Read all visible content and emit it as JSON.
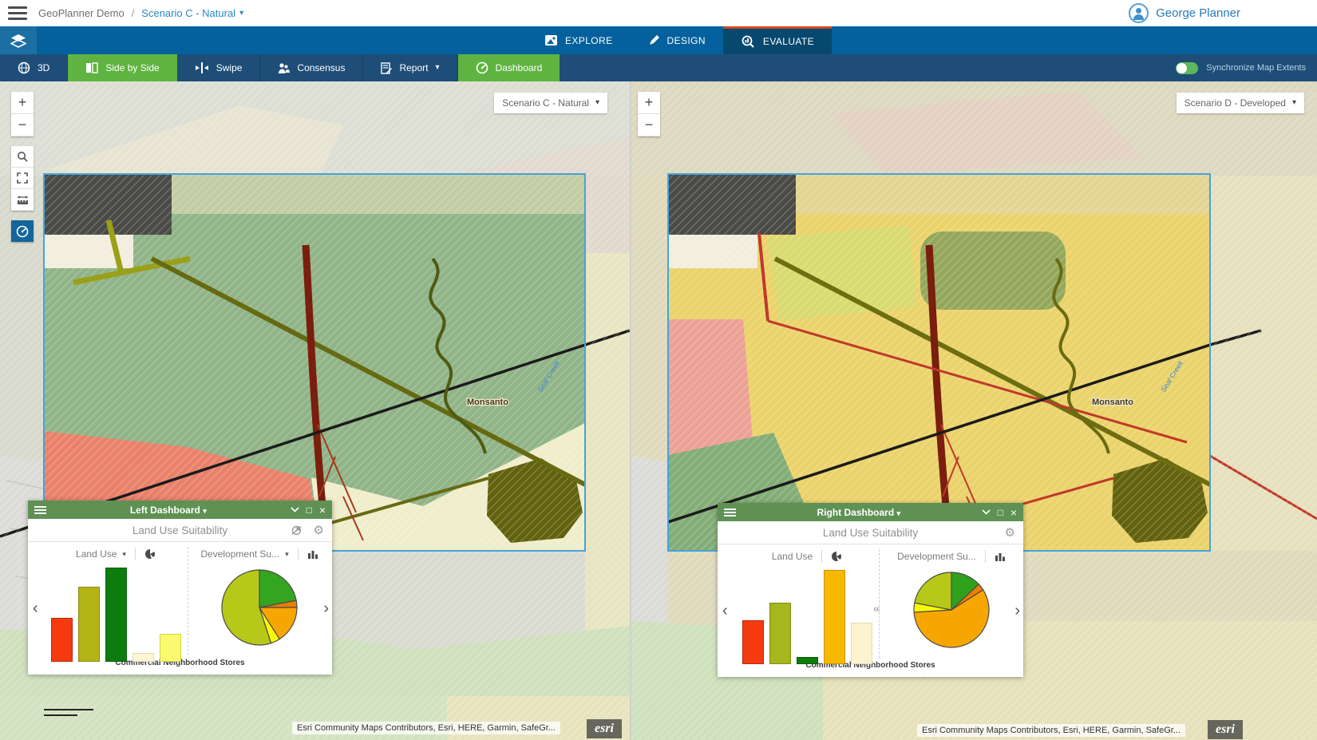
{
  "topbar": {
    "app_title": "GeoPlanner Demo",
    "separator": "/",
    "scenario_label": "Scenario C - Natural",
    "user_name": "George Planner"
  },
  "mode_bar": {
    "tabs": [
      {
        "label": "EXPLORE"
      },
      {
        "label": "DESIGN"
      },
      {
        "label": "EVALUATE"
      }
    ],
    "active_tab": "EVALUATE"
  },
  "toolbar": {
    "buttons": [
      {
        "label": "3D"
      },
      {
        "label": "Side by Side",
        "active": true
      },
      {
        "label": "Swipe"
      },
      {
        "label": "Consensus"
      },
      {
        "label": "Report",
        "has_caret": true
      },
      {
        "label": "Dashboard",
        "active": true
      }
    ],
    "sync_label": "Synchronize Map Extents",
    "sync_on": true
  },
  "left_map": {
    "scenario_selector": "Scenario C - Natural",
    "place_label": "Monsanto",
    "creek_label": "Seal Creek",
    "attribution": "Esri Community Maps Contributors, Esri, HERE, Garmin, SafeGr...",
    "esri_logo": "esri"
  },
  "right_map": {
    "scenario_selector": "Scenario D - Developed",
    "place_label": "Monsanto",
    "creek_label": "Seal Creek",
    "attribution": "Esri Community Maps Contributors, Esri, HERE, Garmin, SafeGr...",
    "esri_logo": "esri"
  },
  "left_dashboard": {
    "title": "Left Dashboard",
    "subtitle": "Land Use Suitability",
    "widgets": [
      {
        "selector_label": "Land Use"
      },
      {
        "selector_label": "Development Su..."
      }
    ],
    "footer_label": "Commercial Neighborhood Stores"
  },
  "right_dashboard": {
    "title": "Right Dashboard",
    "subtitle": "Land Use Suitability",
    "widgets": [
      {
        "selector_label": "Land Use"
      },
      {
        "selector_label": "Development Su..."
      }
    ],
    "footer_label": "Commercial Neighborhood Stores"
  },
  "icons": {
    "caret_down": "▾",
    "chevron_left": "‹",
    "chevron_right": "›",
    "collapse_left": "«",
    "close": "×",
    "maximize": "□",
    "gear": "⚙"
  },
  "colors": {
    "accent_green": "#5fb441",
    "nav_blue": "#04619d",
    "toolbar_navy": "#1e4e78",
    "active_tab_border": "#d0491d",
    "dashboard_header_green": "#5f9155",
    "link_blue": "#2a86c7",
    "extent_border_blue": "#44a4da"
  },
  "chart_data": [
    {
      "id": "left-landuse-bar",
      "type": "bar",
      "title": "Land Use",
      "panel": "Left Dashboard",
      "categories": [
        "",
        "",
        "",
        "",
        ""
      ],
      "values": [
        52,
        88,
        110,
        10,
        33
      ],
      "colors": [
        "#f63a10",
        "#b4b417",
        "#0c7c0c",
        "#fdf5d5",
        "#fafa6e"
      ],
      "borders": [
        "#b32a0c",
        "#8a8a10",
        "#0a5c0a",
        "#e3dcb2",
        "#d6d648"
      ],
      "note": "relative bar heights; no axis labels shown"
    },
    {
      "id": "left-devsuit-pie",
      "type": "pie",
      "title": "Development Su...",
      "panel": "Left Dashboard",
      "values": [
        22,
        3,
        16,
        4,
        55
      ],
      "colors": [
        "#33a51e",
        "#ee7d00",
        "#f7a600",
        "#fbfb00",
        "#b8c818"
      ],
      "start": "12 o'clock, clockwise",
      "note": "slice percentages estimated from pie"
    },
    {
      "id": "right-landuse-bar",
      "type": "bar",
      "title": "Land Use",
      "panel": "Right Dashboard",
      "categories": [
        "",
        "",
        "",
        "",
        ""
      ],
      "values": [
        45,
        62,
        8,
        95,
        42
      ],
      "colors": [
        "#f63a10",
        "#a6b61d",
        "#0c7c0c",
        "#f9b800",
        "#fdf3cf"
      ],
      "borders": [
        "#b32a0c",
        "#7f8c14",
        "#0a5c0a",
        "#c78f00",
        "#e3dcb2"
      ],
      "note": "relative bar heights; no axis labels shown"
    },
    {
      "id": "right-devsuit-pie",
      "type": "pie",
      "title": "Development Su...",
      "panel": "Right Dashboard",
      "values": [
        13,
        3,
        58,
        4,
        22
      ],
      "colors": [
        "#2fa11c",
        "#ee7d00",
        "#f7a600",
        "#fbfb00",
        "#b8c818"
      ],
      "start": "12 o'clock, clockwise",
      "note": "slice percentages estimated from pie"
    }
  ]
}
